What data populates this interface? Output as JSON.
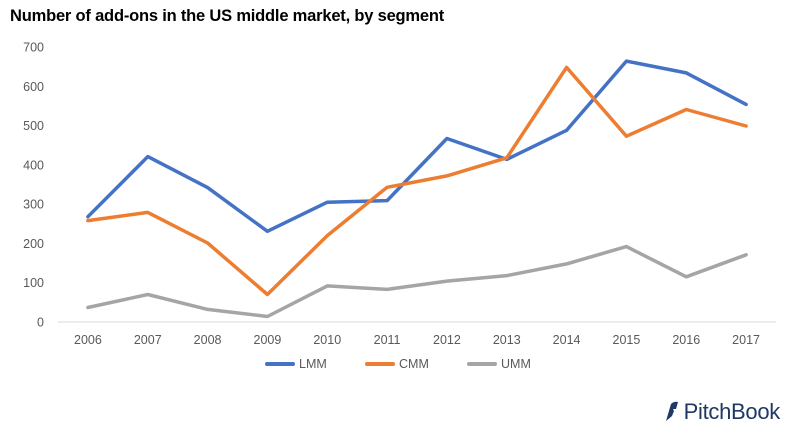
{
  "chart_data": {
    "type": "line",
    "title": "Number of add-ons in the US middle market, by segment",
    "x": [
      "2006",
      "2007",
      "2008",
      "2009",
      "2010",
      "2011",
      "2012",
      "2013",
      "2014",
      "2015",
      "2016",
      "2017"
    ],
    "ylim": [
      0,
      700
    ],
    "yticks": [
      0,
      100,
      200,
      300,
      400,
      500,
      600,
      700
    ],
    "grid": false,
    "legend_position": "bottom",
    "series": [
      {
        "name": "LMM",
        "color": "#4472c4",
        "values": [
          268,
          421,
          342,
          231,
          305,
          309,
          467,
          414,
          488,
          664,
          634,
          554
        ]
      },
      {
        "name": "CMM",
        "color": "#ed7d31",
        "values": [
          258,
          279,
          201,
          70,
          220,
          343,
          372,
          418,
          648,
          473,
          541,
          499
        ]
      },
      {
        "name": "UMM",
        "color": "#a5a5a5",
        "values": [
          37,
          70,
          32,
          14,
          92,
          83,
          104,
          118,
          148,
          192,
          115,
          171
        ]
      }
    ]
  },
  "branding": {
    "logo_text": "PitchBook",
    "logo_color": "#1f3864"
  }
}
